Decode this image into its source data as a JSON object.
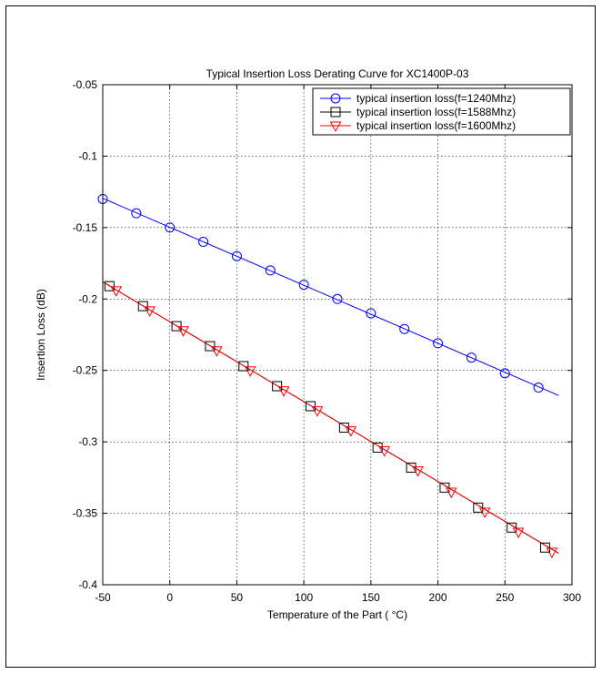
{
  "chart_data": {
    "type": "line",
    "title": "Typical Insertion Loss Derating Curve for XC1400P-03",
    "xlabel": "Temperature of the Part ( °C)",
    "ylabel": "Insertion Loss (dB)",
    "xlim": [
      -50,
      300
    ],
    "ylim": [
      -0.4,
      -0.05
    ],
    "xticks": [
      -50,
      0,
      50,
      100,
      150,
      200,
      250,
      300
    ],
    "yticks": [
      -0.4,
      -0.35,
      -0.3,
      -0.25,
      -0.2,
      -0.15,
      -0.1,
      -0.05
    ],
    "xtick_labels": [
      "-50",
      "0",
      "50",
      "100",
      "150",
      "200",
      "250",
      "300"
    ],
    "ytick_labels": [
      "-0.4",
      "-0.35",
      "-0.3",
      "-0.25",
      "-0.2",
      "-0.15",
      "-0.1",
      "-0.05"
    ],
    "grid": true,
    "legend_position": "top-right",
    "series": [
      {
        "name": "typical insertion loss(f=1240Mhz)",
        "color": "#0000ff",
        "marker": "circle",
        "line_x": [
          -50,
          290
        ],
        "line_y": [
          -0.1295,
          -0.2675
        ],
        "x": [
          -50,
          -25,
          0,
          25,
          50,
          75,
          100,
          125,
          150,
          175,
          200,
          225,
          250,
          275
        ],
        "y": [
          -0.13,
          -0.14,
          -0.15,
          -0.16,
          -0.17,
          -0.18,
          -0.19,
          -0.2,
          -0.21,
          -0.221,
          -0.231,
          -0.241,
          -0.252,
          -0.262
        ]
      },
      {
        "name": "typical insertion loss(f=1588Mhz)",
        "color": "#000000",
        "marker": "square",
        "line_x": [
          -50,
          290
        ],
        "line_y": [
          -0.188,
          -0.378
        ],
        "x": [
          -45,
          -20,
          5,
          30,
          55,
          80,
          105,
          130,
          155,
          180,
          205,
          230,
          255,
          280
        ],
        "y": [
          -0.191,
          -0.205,
          -0.219,
          -0.233,
          -0.247,
          -0.261,
          -0.275,
          -0.29,
          -0.304,
          -0.318,
          -0.332,
          -0.346,
          -0.36,
          -0.374
        ]
      },
      {
        "name": "typical insertion loss(f=1600Mhz)",
        "color": "#ff0000",
        "marker": "triangle-down",
        "line_x": [
          -50,
          290
        ],
        "line_y": [
          -0.188,
          -0.378
        ],
        "x": [
          -40,
          -15,
          10,
          35,
          60,
          85,
          110,
          135,
          160,
          185,
          210,
          235,
          260,
          285
        ],
        "y": [
          -0.194,
          -0.208,
          -0.222,
          -0.236,
          -0.25,
          -0.264,
          -0.278,
          -0.292,
          -0.306,
          -0.32,
          -0.335,
          -0.349,
          -0.363,
          -0.377
        ]
      }
    ]
  }
}
